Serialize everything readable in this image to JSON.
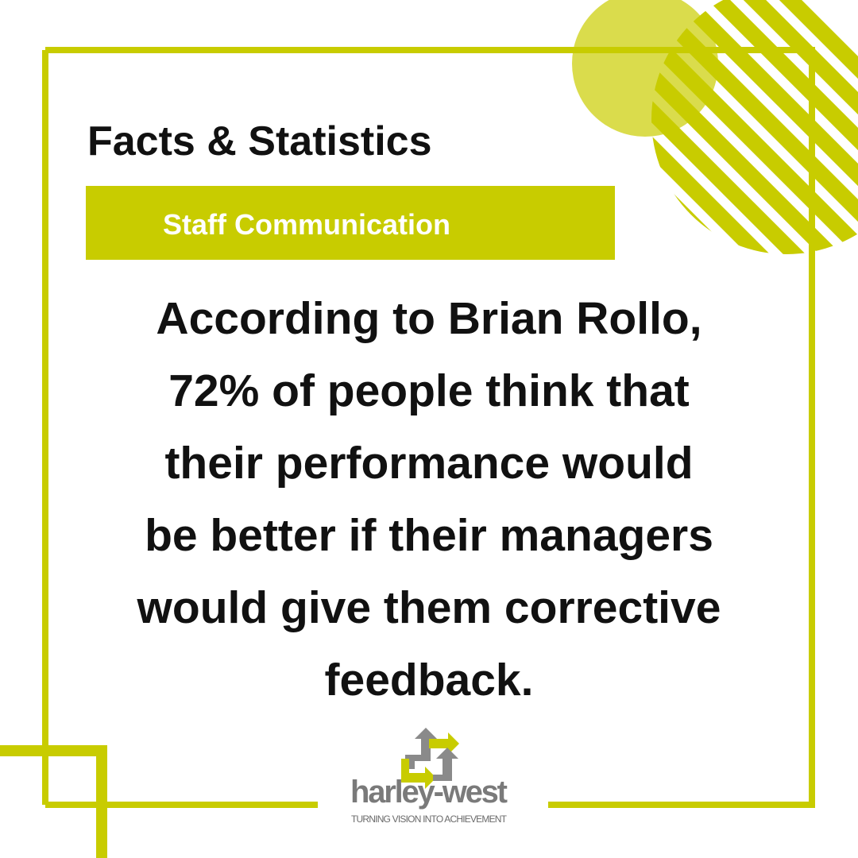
{
  "header": {
    "title": "Facts & Statistics",
    "tag": "Staff Communication"
  },
  "body": {
    "lines": [
      "According to Brian Rollo,",
      "72% of people think that",
      "their performance would",
      "be better if their managers",
      "would give them corrective",
      "feedback."
    ]
  },
  "logo": {
    "name": "harley-west",
    "tagline": "TURNING VISION INTO ACHIEVEMENT"
  }
}
